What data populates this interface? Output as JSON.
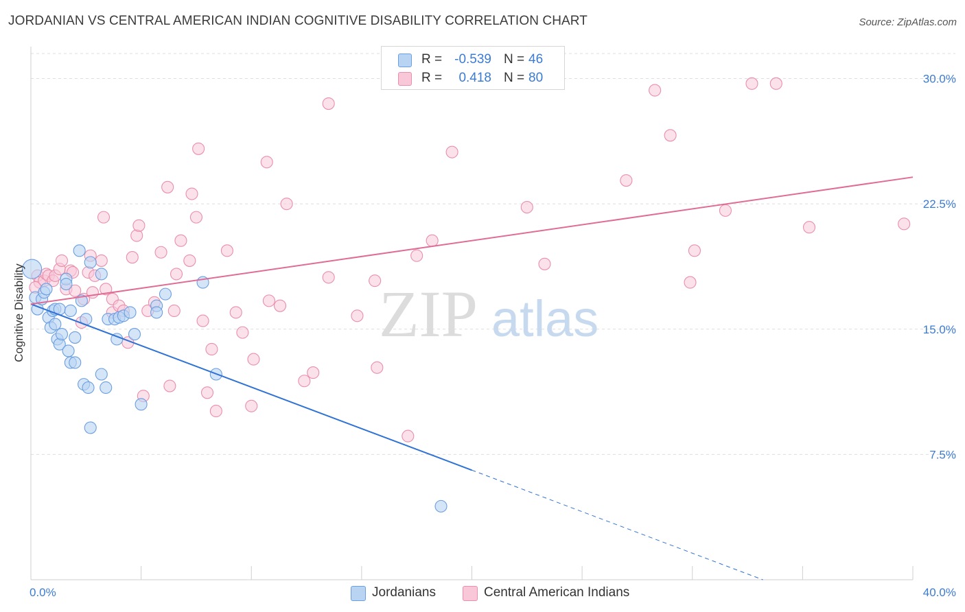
{
  "header": {
    "title": "JORDANIAN VS CENTRAL AMERICAN INDIAN COGNITIVE DISABILITY CORRELATION CHART",
    "source": "Source: ZipAtlas.com"
  },
  "watermark": {
    "zip": "ZIP",
    "atlas": "atlas"
  },
  "legend": {
    "rows": [
      {
        "r_label": "R =",
        "r_value": "-0.539",
        "n_label": "N =",
        "n_value": "46"
      },
      {
        "r_label": "R =",
        "r_value": "0.418",
        "n_label": "N =",
        "n_value": "80"
      }
    ]
  },
  "bottom_legend": {
    "jordanians": "Jordanians",
    "central": "Central American Indians"
  },
  "colors": {
    "blue_fill": "#b9d3f3",
    "blue_stroke": "#6a9ee0",
    "blue_line": "#2f72d4",
    "pink_fill": "#f8c8d8",
    "pink_stroke": "#ea8eab",
    "pink_line": "#e06c96",
    "tick_label": "#3b7bd4",
    "grid": "#dddddd"
  },
  "chart_data": {
    "type": "scatter",
    "title": "JORDANIAN VS CENTRAL AMERICAN INDIAN COGNITIVE DISABILITY CORRELATION CHART",
    "xlabel": "",
    "ylabel": "Cognitive Disability",
    "xlim": [
      0,
      40
    ],
    "ylim": [
      0,
      31.5
    ],
    "x_tick_labels": [
      "0.0%",
      "40.0%"
    ],
    "y_ticks": [
      7.5,
      15.0,
      22.5,
      30.0
    ],
    "y_tick_labels": [
      "7.5%",
      "15.0%",
      "22.5%",
      "30.0%"
    ],
    "grid": true,
    "series": [
      {
        "name": "Jordanians",
        "r": -0.539,
        "n": 46,
        "points": [
          [
            0.05,
            18.6
          ],
          [
            0.2,
            16.9
          ],
          [
            0.3,
            16.2
          ],
          [
            0.5,
            16.8
          ],
          [
            0.6,
            17.2
          ],
          [
            0.7,
            17.4
          ],
          [
            0.8,
            15.7
          ],
          [
            0.9,
            15.1
          ],
          [
            1.0,
            16.1
          ],
          [
            1.1,
            15.3
          ],
          [
            1.1,
            16.2
          ],
          [
            1.2,
            14.4
          ],
          [
            1.3,
            16.2
          ],
          [
            1.3,
            14.1
          ],
          [
            1.4,
            14.7
          ],
          [
            1.6,
            18.0
          ],
          [
            1.7,
            13.7
          ],
          [
            1.8,
            16.1
          ],
          [
            1.8,
            13.0
          ],
          [
            2.0,
            13.0
          ],
          [
            2.0,
            14.5
          ],
          [
            2.2,
            19.7
          ],
          [
            2.3,
            16.7
          ],
          [
            2.4,
            11.7
          ],
          [
            2.5,
            15.6
          ],
          [
            2.6,
            11.5
          ],
          [
            2.7,
            19.0
          ],
          [
            2.7,
            9.1
          ],
          [
            3.2,
            12.3
          ],
          [
            3.2,
            18.3
          ],
          [
            3.4,
            11.5
          ],
          [
            3.5,
            15.6
          ],
          [
            3.8,
            15.6
          ],
          [
            3.9,
            14.4
          ],
          [
            4.0,
            15.7
          ],
          [
            4.2,
            15.8
          ],
          [
            4.5,
            16.0
          ],
          [
            4.7,
            14.7
          ],
          [
            5.0,
            10.5
          ],
          [
            5.7,
            16.4
          ],
          [
            5.7,
            16.0
          ],
          [
            6.1,
            17.1
          ],
          [
            7.8,
            17.8
          ],
          [
            8.4,
            12.3
          ],
          [
            18.6,
            4.4
          ],
          [
            1.6,
            17.7
          ]
        ],
        "trend": {
          "x0": 0,
          "y0": 16.5,
          "x_solid_end": 20.0,
          "x1": 33.2,
          "y1": 0
        }
      },
      {
        "name": "Central American Indians",
        "r": 0.418,
        "n": 80,
        "points": [
          [
            0.3,
            18.2
          ],
          [
            0.4,
            17.8
          ],
          [
            0.6,
            17.9
          ],
          [
            0.7,
            18.3
          ],
          [
            0.8,
            18.2
          ],
          [
            1.0,
            17.9
          ],
          [
            1.1,
            18.2
          ],
          [
            1.3,
            18.6
          ],
          [
            1.4,
            19.1
          ],
          [
            1.6,
            17.4
          ],
          [
            1.8,
            18.5
          ],
          [
            1.9,
            18.4
          ],
          [
            2.0,
            17.3
          ],
          [
            2.3,
            15.4
          ],
          [
            2.4,
            16.8
          ],
          [
            2.6,
            18.4
          ],
          [
            2.7,
            19.4
          ],
          [
            2.8,
            17.2
          ],
          [
            2.9,
            18.2
          ],
          [
            3.2,
            19.1
          ],
          [
            3.3,
            21.7
          ],
          [
            3.4,
            17.4
          ],
          [
            3.7,
            16.8
          ],
          [
            3.7,
            16.0
          ],
          [
            4.0,
            16.4
          ],
          [
            4.2,
            16.1
          ],
          [
            4.4,
            14.2
          ],
          [
            4.6,
            19.3
          ],
          [
            4.8,
            20.6
          ],
          [
            4.9,
            21.2
          ],
          [
            5.1,
            11.0
          ],
          [
            5.3,
            16.1
          ],
          [
            5.6,
            16.6
          ],
          [
            5.9,
            19.6
          ],
          [
            6.2,
            23.5
          ],
          [
            6.3,
            11.6
          ],
          [
            6.5,
            16.1
          ],
          [
            6.6,
            18.3
          ],
          [
            6.8,
            20.3
          ],
          [
            7.2,
            19.1
          ],
          [
            7.3,
            23.1
          ],
          [
            7.5,
            21.7
          ],
          [
            7.6,
            25.8
          ],
          [
            7.8,
            15.5
          ],
          [
            8.0,
            11.2
          ],
          [
            8.2,
            13.8
          ],
          [
            8.4,
            10.1
          ],
          [
            8.9,
            19.7
          ],
          [
            9.3,
            16.0
          ],
          [
            9.6,
            14.8
          ],
          [
            10.0,
            10.4
          ],
          [
            10.1,
            13.2
          ],
          [
            10.7,
            25.0
          ],
          [
            10.8,
            16.7
          ],
          [
            11.3,
            16.4
          ],
          [
            11.6,
            22.5
          ],
          [
            12.4,
            11.9
          ],
          [
            12.8,
            12.4
          ],
          [
            13.5,
            28.5
          ],
          [
            13.5,
            18.1
          ],
          [
            14.8,
            15.8
          ],
          [
            15.6,
            17.9
          ],
          [
            15.7,
            12.7
          ],
          [
            17.1,
            8.6
          ],
          [
            17.5,
            19.4
          ],
          [
            18.2,
            20.3
          ],
          [
            19.1,
            25.6
          ],
          [
            22.5,
            22.3
          ],
          [
            23.3,
            18.9
          ],
          [
            27.0,
            23.9
          ],
          [
            28.3,
            29.3
          ],
          [
            29.0,
            26.6
          ],
          [
            29.9,
            17.8
          ],
          [
            30.1,
            19.7
          ],
          [
            31.5,
            22.1
          ],
          [
            32.7,
            29.7
          ],
          [
            33.8,
            29.7
          ],
          [
            35.3,
            21.1
          ],
          [
            39.6,
            21.3
          ],
          [
            0.2,
            17.5
          ]
        ],
        "trend": {
          "x0": 0,
          "y0": 16.5,
          "x1": 40,
          "y1": 24.1
        }
      }
    ]
  }
}
